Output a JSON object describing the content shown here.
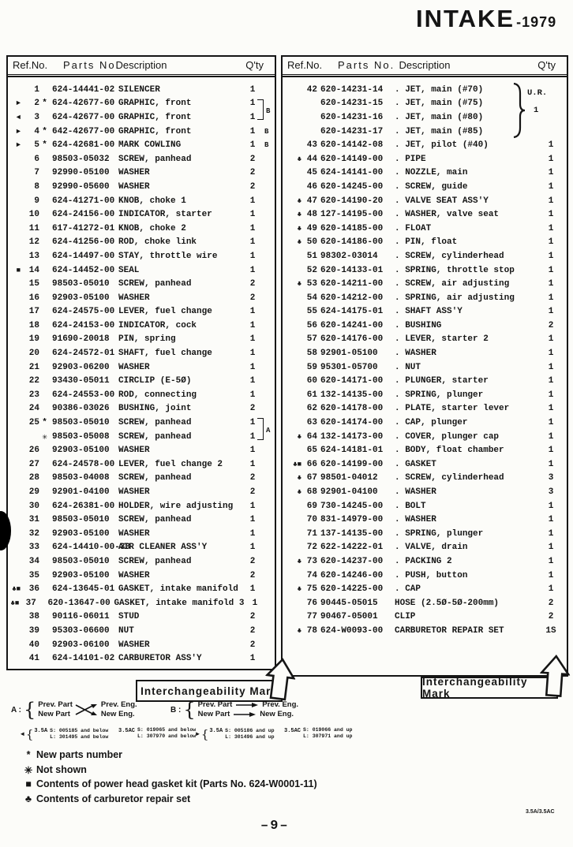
{
  "page": {
    "title": "INTAKE",
    "title_year": "-1979",
    "page_number": "–9–",
    "model_code": "3.5A/3.5AC"
  },
  "table": {
    "headers": {
      "ref": "Ref.No.",
      "parts": "Parts  No.",
      "desc": "Description",
      "qty": "Q'ty"
    },
    "bracket_a": "A",
    "bracket_b": "B",
    "jets_group": {
      "ur": "U.R.",
      "qty": "1"
    },
    "left_rows": [
      {
        "mark": "",
        "ref": "1",
        "star": "",
        "parts": "624-14441-02",
        "desc": "SILENCER",
        "qty": "1",
        "note": ""
      },
      {
        "mark": "►",
        "ref": "2",
        "star": "*",
        "parts": "624-42677-60",
        "desc": "GRAPHIC, front",
        "qty": "1",
        "note": ""
      },
      {
        "mark": "◄",
        "ref": "3",
        "star": "",
        "parts": "624-42677-00",
        "desc": "GRAPHIC, front",
        "qty": "1",
        "note": ""
      },
      {
        "mark": "►",
        "ref": "4",
        "star": "*",
        "parts": "642-42677-00",
        "desc": "GRAPHIC, front",
        "qty": "1",
        "note": "B"
      },
      {
        "mark": "►",
        "ref": "5",
        "star": "*",
        "parts": "624-42681-00",
        "desc": "MARK COWLING",
        "qty": "1",
        "note": "B"
      },
      {
        "mark": "",
        "ref": "6",
        "star": "",
        "parts": "98503-05032",
        "desc": "SCREW, panhead",
        "qty": "2",
        "note": ""
      },
      {
        "mark": "",
        "ref": "7",
        "star": "",
        "parts": "92990-05100",
        "desc": "WASHER",
        "qty": "2",
        "note": ""
      },
      {
        "mark": "",
        "ref": "8",
        "star": "",
        "parts": "92990-05600",
        "desc": "WASHER",
        "qty": "2",
        "note": ""
      },
      {
        "mark": "",
        "ref": "9",
        "star": "",
        "parts": "624-41271-00",
        "desc": "KNOB, choke 1",
        "qty": "1",
        "note": ""
      },
      {
        "mark": "",
        "ref": "10",
        "star": "",
        "parts": "624-24156-00",
        "desc": "INDICATOR, starter",
        "qty": "1",
        "note": ""
      },
      {
        "mark": "",
        "ref": "11",
        "star": "",
        "parts": "617-41272-01",
        "desc": "KNOB, choke 2",
        "qty": "1",
        "note": ""
      },
      {
        "mark": "",
        "ref": "12",
        "star": "",
        "parts": "624-41256-00",
        "desc": "ROD, choke link",
        "qty": "1",
        "note": ""
      },
      {
        "mark": "",
        "ref": "13",
        "star": "",
        "parts": "624-14497-00",
        "desc": "STAY, throttle wire",
        "qty": "1",
        "note": ""
      },
      {
        "mark": "■",
        "ref": "14",
        "star": "",
        "parts": "624-14452-00",
        "desc": "SEAL",
        "qty": "1",
        "note": ""
      },
      {
        "mark": "",
        "ref": "15",
        "star": "",
        "parts": "98503-05010",
        "desc": "SCREW, panhead",
        "qty": "2",
        "note": ""
      },
      {
        "mark": "",
        "ref": "16",
        "star": "",
        "parts": "92903-05100",
        "desc": "WASHER",
        "qty": "2",
        "note": ""
      },
      {
        "mark": "",
        "ref": "17",
        "star": "",
        "parts": "624-24575-00",
        "desc": "LEVER, fuel change",
        "qty": "1",
        "note": ""
      },
      {
        "mark": "",
        "ref": "18",
        "star": "",
        "parts": "624-24153-00",
        "desc": "INDICATOR, cock",
        "qty": "1",
        "note": ""
      },
      {
        "mark": "",
        "ref": "19",
        "star": "",
        "parts": "91690-20018",
        "desc": "PIN, spring",
        "qty": "1",
        "note": ""
      },
      {
        "mark": "",
        "ref": "20",
        "star": "",
        "parts": "624-24572-01",
        "desc": "SHAFT, fuel change",
        "qty": "1",
        "note": ""
      },
      {
        "mark": "",
        "ref": "21",
        "star": "",
        "parts": "92903-06200",
        "desc": "WASHER",
        "qty": "1",
        "note": ""
      },
      {
        "mark": "",
        "ref": "22",
        "star": "",
        "parts": "93430-05011",
        "desc": "CIRCLIP (E-5Ø)",
        "qty": "1",
        "note": ""
      },
      {
        "mark": "",
        "ref": "23",
        "star": "",
        "parts": "624-24553-00",
        "desc": "ROD, connecting",
        "qty": "1",
        "note": ""
      },
      {
        "mark": "",
        "ref": "24",
        "star": "",
        "parts": "90386-03026",
        "desc": "BUSHING, joint",
        "qty": "2",
        "note": ""
      },
      {
        "mark": "",
        "ref": "25",
        "star": "*",
        "parts": "98503-05010",
        "desc": "SCREW, panhead",
        "qty": "1",
        "note": ""
      },
      {
        "mark": "",
        "ref": "",
        "star": "✳",
        "parts": "98503-05008",
        "desc": "SCREW, panhead",
        "qty": "1",
        "note": ""
      },
      {
        "mark": "",
        "ref": "26",
        "star": "",
        "parts": "92903-05100",
        "desc": "WASHER",
        "qty": "1",
        "note": ""
      },
      {
        "mark": "",
        "ref": "27",
        "star": "",
        "parts": "624-24578-00",
        "desc": "LEVER, fuel change 2",
        "qty": "1",
        "note": ""
      },
      {
        "mark": "",
        "ref": "28",
        "star": "",
        "parts": "98503-04008",
        "desc": "SCREW, panhead",
        "qty": "2",
        "note": ""
      },
      {
        "mark": "",
        "ref": "29",
        "star": "",
        "parts": "92901-04100",
        "desc": "WASHER",
        "qty": "2",
        "note": ""
      },
      {
        "mark": "",
        "ref": "30",
        "star": "",
        "parts": "624-26381-00",
        "desc": "HOLDER, wire adjusting",
        "qty": "1",
        "note": ""
      },
      {
        "mark": "",
        "ref": "31",
        "star": "",
        "parts": "98503-05010",
        "desc": "SCREW, panhead",
        "qty": "1",
        "note": ""
      },
      {
        "mark": "",
        "ref": "32",
        "star": "",
        "parts": "92903-05100",
        "desc": "WASHER",
        "qty": "1",
        "note": ""
      },
      {
        "mark": "",
        "ref": "33",
        "star": "",
        "parts": "624-14410-00-33",
        "desc": "AIR CLEANER ASS'Y",
        "qty": "1",
        "note": ""
      },
      {
        "mark": "",
        "ref": "34",
        "star": "",
        "parts": "98503-05010",
        "desc": "SCREW, panhead",
        "qty": "2",
        "note": ""
      },
      {
        "mark": "",
        "ref": "35",
        "star": "",
        "parts": "92903-05100",
        "desc": "WASHER",
        "qty": "2",
        "note": ""
      },
      {
        "mark": "♣■",
        "ref": "36",
        "star": "",
        "parts": "624-13645-01",
        "desc": "GASKET, intake manifold",
        "qty": "1",
        "note": ""
      },
      {
        "mark": "♣■",
        "ref": "37",
        "star": "",
        "parts": "620-13647-00",
        "desc": "GASKET, intake manifold 3",
        "qty": "1",
        "note": ""
      },
      {
        "mark": "",
        "ref": "38",
        "star": "",
        "parts": "90116-06011",
        "desc": "STUD",
        "qty": "2",
        "note": ""
      },
      {
        "mark": "",
        "ref": "39",
        "star": "",
        "parts": "95303-06600",
        "desc": "NUT",
        "qty": "2",
        "note": ""
      },
      {
        "mark": "",
        "ref": "40",
        "star": "",
        "parts": "92903-06100",
        "desc": "WASHER",
        "qty": "2",
        "note": ""
      },
      {
        "mark": "",
        "ref": "41",
        "star": "",
        "parts": "624-14101-02",
        "desc": "CARBURETOR ASS'Y",
        "qty": "1",
        "note": ""
      }
    ],
    "right_rows": [
      {
        "mark": "",
        "ref": "42",
        "star": "",
        "parts": "620-14231-14",
        "desc": ". JET, main (#70)",
        "qty": "",
        "note": ""
      },
      {
        "mark": "",
        "ref": "",
        "star": "",
        "parts": "620-14231-15",
        "desc": ". JET, main (#75)",
        "qty": "",
        "note": ""
      },
      {
        "mark": "",
        "ref": "",
        "star": "",
        "parts": "620-14231-16",
        "desc": ". JET, main (#80)",
        "qty": "",
        "note": ""
      },
      {
        "mark": "",
        "ref": "",
        "star": "",
        "parts": "620-14231-17",
        "desc": ". JET, main (#85)",
        "qty": "",
        "note": ""
      },
      {
        "mark": "",
        "ref": "43",
        "star": "",
        "parts": "620-14142-08",
        "desc": ". JET, pilot (#40)",
        "qty": "1",
        "note": ""
      },
      {
        "mark": "♣",
        "ref": "44",
        "star": "",
        "parts": "620-14149-00",
        "desc": ". PIPE",
        "qty": "1",
        "note": ""
      },
      {
        "mark": "",
        "ref": "45",
        "star": "",
        "parts": "624-14141-00",
        "desc": ". NOZZLE, main",
        "qty": "1",
        "note": ""
      },
      {
        "mark": "",
        "ref": "46",
        "star": "",
        "parts": "620-14245-00",
        "desc": ". SCREW, guide",
        "qty": "1",
        "note": ""
      },
      {
        "mark": "♣",
        "ref": "47",
        "star": "",
        "parts": "620-14190-20",
        "desc": ". VALVE SEAT ASS'Y",
        "qty": "1",
        "note": ""
      },
      {
        "mark": "♣",
        "ref": "48",
        "star": "",
        "parts": "127-14195-00",
        "desc": ". WASHER, valve seat",
        "qty": "1",
        "note": ""
      },
      {
        "mark": "♣",
        "ref": "49",
        "star": "",
        "parts": "620-14185-00",
        "desc": ". FLOAT",
        "qty": "1",
        "note": ""
      },
      {
        "mark": "♣",
        "ref": "50",
        "star": "",
        "parts": "620-14186-00",
        "desc": ". PIN, float",
        "qty": "1",
        "note": ""
      },
      {
        "mark": "",
        "ref": "51",
        "star": "",
        "parts": "98302-03014",
        "desc": ". SCREW, cylinderhead",
        "qty": "1",
        "note": ""
      },
      {
        "mark": "",
        "ref": "52",
        "star": "",
        "parts": "620-14133-01",
        "desc": ". SPRING, throttle stop",
        "qty": "1",
        "note": ""
      },
      {
        "mark": "♣",
        "ref": "53",
        "star": "",
        "parts": "620-14211-00",
        "desc": ". SCREW, air adjusting",
        "qty": "1",
        "note": ""
      },
      {
        "mark": "",
        "ref": "54",
        "star": "",
        "parts": "620-14212-00",
        "desc": ". SPRING, air adjusting",
        "qty": "1",
        "note": ""
      },
      {
        "mark": "",
        "ref": "55",
        "star": "",
        "parts": "624-14175-01",
        "desc": ". SHAFT ASS'Y",
        "qty": "1",
        "note": ""
      },
      {
        "mark": "",
        "ref": "56",
        "star": "",
        "parts": "620-14241-00",
        "desc": ". BUSHING",
        "qty": "2",
        "note": ""
      },
      {
        "mark": "",
        "ref": "57",
        "star": "",
        "parts": "620-14176-00",
        "desc": ". LEVER, starter 2",
        "qty": "1",
        "note": ""
      },
      {
        "mark": "",
        "ref": "58",
        "star": "",
        "parts": "92901-05100",
        "desc": ". WASHER",
        "qty": "1",
        "note": ""
      },
      {
        "mark": "",
        "ref": "59",
        "star": "",
        "parts": "95301-05700",
        "desc": ". NUT",
        "qty": "1",
        "note": ""
      },
      {
        "mark": "",
        "ref": "60",
        "star": "",
        "parts": "620-14171-00",
        "desc": ". PLUNGER, starter",
        "qty": "1",
        "note": ""
      },
      {
        "mark": "",
        "ref": "61",
        "star": "",
        "parts": "132-14135-00",
        "desc": ". SPRING, plunger",
        "qty": "1",
        "note": ""
      },
      {
        "mark": "",
        "ref": "62",
        "star": "",
        "parts": "620-14178-00",
        "desc": ". PLATE, starter lever",
        "qty": "1",
        "note": ""
      },
      {
        "mark": "",
        "ref": "63",
        "star": "",
        "parts": "620-14174-00",
        "desc": ". CAP, plunger",
        "qty": "1",
        "note": ""
      },
      {
        "mark": "♣",
        "ref": "64",
        "star": "",
        "parts": "132-14173-00",
        "desc": ". COVER, plunger cap",
        "qty": "1",
        "note": ""
      },
      {
        "mark": "",
        "ref": "65",
        "star": "",
        "parts": "624-14181-01",
        "desc": ". BODY, float chamber",
        "qty": "1",
        "note": ""
      },
      {
        "mark": "♣■",
        "ref": "66",
        "star": "",
        "parts": "620-14199-00",
        "desc": ". GASKET",
        "qty": "1",
        "note": ""
      },
      {
        "mark": "♣",
        "ref": "67",
        "star": "",
        "parts": "98501-04012",
        "desc": ". SCREW, cylinderhead",
        "qty": "3",
        "note": ""
      },
      {
        "mark": "♣",
        "ref": "68",
        "star": "",
        "parts": "92901-04100",
        "desc": ". WASHER",
        "qty": "3",
        "note": ""
      },
      {
        "mark": "",
        "ref": "69",
        "star": "",
        "parts": "730-14245-00",
        "desc": ". BOLT",
        "qty": "1",
        "note": ""
      },
      {
        "mark": "",
        "ref": "70",
        "star": "",
        "parts": "831-14979-00",
        "desc": ". WASHER",
        "qty": "1",
        "note": ""
      },
      {
        "mark": "",
        "ref": "71",
        "star": "",
        "parts": "137-14135-00",
        "desc": ". SPRING, plunger",
        "qty": "1",
        "note": ""
      },
      {
        "mark": "",
        "ref": "72",
        "star": "",
        "parts": "622-14222-01",
        "desc": ". VALVE, drain",
        "qty": "1",
        "note": ""
      },
      {
        "mark": "♣",
        "ref": "73",
        "star": "",
        "parts": "620-14237-00",
        "desc": ". PACKING 2",
        "qty": "1",
        "note": ""
      },
      {
        "mark": "",
        "ref": "74",
        "star": "",
        "parts": "620-14246-00",
        "desc": ". PUSH, button",
        "qty": "1",
        "note": ""
      },
      {
        "mark": "♣",
        "ref": "75",
        "star": "",
        "parts": "620-14225-00",
        "desc": ". CAP",
        "qty": "1",
        "note": ""
      },
      {
        "mark": "",
        "ref": "76",
        "star": "",
        "parts": "90445-05015",
        "desc": "HOSE (2.5Ø-5Ø-200mm)",
        "qty": "2",
        "note": ""
      },
      {
        "mark": "",
        "ref": "77",
        "star": "",
        "parts": "90467-05001",
        "desc": "CLIP",
        "qty": "2",
        "note": ""
      },
      {
        "mark": "♣",
        "ref": "78",
        "star": "",
        "parts": "624-W0093-00",
        "desc": "CARBURETOR REPAIR SET",
        "qty": "1S",
        "note": ""
      }
    ]
  },
  "interchangeability": {
    "label": "Interchangeability Mark"
  },
  "legend_a": {
    "key": "A :",
    "rows": [
      {
        "from": "Prev. Part",
        "to": "Prev. Eng."
      },
      {
        "from": "New Part",
        "to": "New Eng."
      }
    ]
  },
  "legend_b": {
    "key": "B :",
    "rows": [
      {
        "from": "Prev. Part",
        "to": "Prev. Eng."
      },
      {
        "from": "New Part",
        "to": "New Eng."
      }
    ]
  },
  "serials": {
    "groups": [
      {
        "marker": "◄",
        "model": "3.5A",
        "s": "S: 005185 and below",
        "l": "L: 301495 and below"
      },
      {
        "marker": "",
        "model": "3.5AC",
        "s": "S: 019065 and below",
        "l": "L: 307970 and below"
      },
      {
        "marker": "►",
        "model": "3.5A",
        "s": "S: 005186 and up",
        "l": "L: 301496 and up"
      },
      {
        "marker": "",
        "model": "3.5AC",
        "s": "S: 019066 and up",
        "l": "L: 307971 and up"
      }
    ]
  },
  "footnotes": [
    {
      "symbol": "*",
      "text": "New parts number"
    },
    {
      "symbol": "✳",
      "text": "Not shown"
    },
    {
      "symbol": "■",
      "text": "Contents of power head gasket kit (Parts No. 624-W0001-11)"
    },
    {
      "symbol": "♣",
      "text": "Contents of carburetor repair set"
    }
  ],
  "colors": {
    "ink": "#151515",
    "paper": "#fcfcf9"
  }
}
